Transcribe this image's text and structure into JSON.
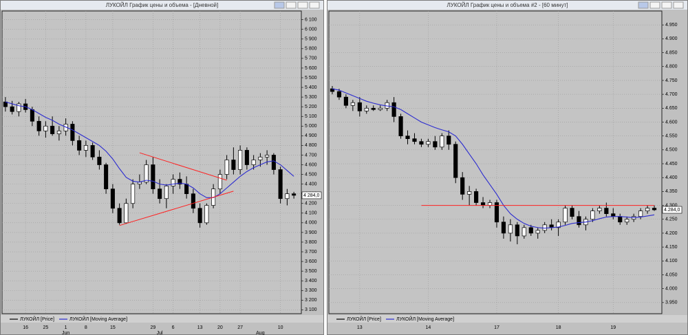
{
  "chart_data": [
    {
      "type": "candlestick",
      "title": "ЛУКОЙЛ График цены и объема - [Дневной]",
      "grid": true,
      "up_color": "#ffffff",
      "down_color": "#000000",
      "categories": [
        null,
        null,
        null,
        "16",
        null,
        null,
        "25",
        null,
        null,
        "1",
        null,
        null,
        "8",
        null,
        null,
        null,
        "15",
        null,
        null,
        null,
        null,
        null,
        "29",
        null,
        null,
        "6",
        null,
        null,
        null,
        "13",
        null,
        null,
        "20",
        null,
        null,
        "27",
        null,
        null,
        null,
        null,
        null,
        "10",
        null,
        null
      ],
      "months": [
        null,
        null,
        null,
        null,
        null,
        null,
        null,
        null,
        null,
        "Jun",
        null,
        null,
        null,
        null,
        null,
        null,
        null,
        null,
        null,
        null,
        null,
        null,
        null,
        "Jul",
        null,
        null,
        null,
        null,
        null,
        null,
        null,
        null,
        null,
        null,
        null,
        null,
        null,
        null,
        "Aug",
        null,
        null,
        null,
        null,
        null
      ],
      "series": [
        {
          "name": "ЛУКОЙЛ [Price]",
          "color": "#000000",
          "open": [
            5250,
            5200,
            5150,
            5230,
            5170,
            5050,
            4950,
            5000,
            4920,
            4950,
            5020,
            4850,
            4750,
            4800,
            4680,
            4600,
            4350,
            4150,
            4000,
            4200,
            4400,
            4420,
            4600,
            4350,
            4250,
            4380,
            4450,
            4400,
            4300,
            4150,
            4000,
            4180,
            4350,
            4500,
            4650,
            4550,
            4750,
            4600,
            4650,
            4680,
            4700,
            4550,
            4250,
            4300
          ],
          "high": [
            5300,
            5260,
            5250,
            5280,
            5200,
            5100,
            5050,
            5100,
            5000,
            5080,
            5050,
            4900,
            4850,
            4830,
            4750,
            4620,
            4400,
            4200,
            4250,
            4450,
            4500,
            4650,
            4680,
            4450,
            4400,
            4500,
            4520,
            4480,
            4350,
            4200,
            4200,
            4400,
            4550,
            4700,
            4780,
            4800,
            4780,
            4700,
            4720,
            4750,
            4720,
            4580,
            4350,
            4320
          ],
          "low": [
            5150,
            5120,
            5100,
            5140,
            5000,
            4900,
            4880,
            4900,
            4850,
            4900,
            4800,
            4700,
            4680,
            4650,
            4550,
            4300,
            4100,
            3980,
            3990,
            4150,
            4350,
            4400,
            4300,
            4200,
            4150,
            4300,
            4350,
            4250,
            4100,
            3950,
            3980,
            4150,
            4300,
            4450,
            4500,
            4500,
            4550,
            4550,
            4580,
            4600,
            4500,
            4200,
            4180,
            4250
          ],
          "close": [
            5200,
            5150,
            5230,
            5170,
            5050,
            4950,
            5000,
            4920,
            4950,
            5020,
            4850,
            4750,
            4800,
            4680,
            4600,
            4350,
            4150,
            4000,
            4200,
            4400,
            4420,
            4600,
            4350,
            4250,
            4380,
            4450,
            4400,
            4300,
            4150,
            4000,
            4180,
            4350,
            4500,
            4650,
            4550,
            4750,
            4600,
            4650,
            4680,
            4700,
            4550,
            4250,
            4300,
            4284
          ]
        },
        {
          "name": "ЛУКОЙЛ [Moving Average]",
          "color": "#2b2bd0",
          "values": [
            5250,
            5230,
            5210,
            5200,
            5170,
            5130,
            5090,
            5060,
            5020,
            4990,
            4960,
            4920,
            4880,
            4840,
            4800,
            4740,
            4660,
            4560,
            4470,
            4430,
            4420,
            4440,
            4430,
            4400,
            4390,
            4400,
            4410,
            4400,
            4360,
            4300,
            4260,
            4260,
            4300,
            4360,
            4420,
            4480,
            4530,
            4570,
            4600,
            4630,
            4640,
            4600,
            4540,
            4480
          ]
        }
      ],
      "lines": [
        {
          "color": "#ff2020",
          "x": [
            20,
            33
          ],
          "y": [
            4724,
            4440
          ]
        },
        {
          "color": "#ff2020",
          "x": [
            17,
            34
          ],
          "y": [
            3972,
            4327
          ]
        }
      ],
      "last_label": {
        "value": 4284,
        "label": "4 284,0"
      },
      "ylim": [
        3060,
        6190
      ],
      "yticks": [
        {
          "value": 3100,
          "label": "3 100"
        },
        {
          "value": 3200,
          "label": "3 200"
        },
        {
          "value": 3300,
          "label": "3 300"
        },
        {
          "value": 3400,
          "label": "3 400"
        },
        {
          "value": 3500,
          "label": "3 500"
        },
        {
          "value": 3600,
          "label": "3 600"
        },
        {
          "value": 3700,
          "label": "3 700"
        },
        {
          "value": 3800,
          "label": "3 800"
        },
        {
          "value": 3900,
          "label": "3 900"
        },
        {
          "value": 4000,
          "label": "4 000"
        },
        {
          "value": 4100,
          "label": "4 100"
        },
        {
          "value": 4200,
          "label": "4 200"
        },
        {
          "value": 4300,
          "label": "4 300"
        },
        {
          "value": 4400,
          "label": "4 400"
        },
        {
          "value": 4500,
          "label": "4 500"
        },
        {
          "value": 4600,
          "label": "4 600"
        },
        {
          "value": 4700,
          "label": "4 700"
        },
        {
          "value": 4800,
          "label": "4 800"
        },
        {
          "value": 4900,
          "label": "4 900"
        },
        {
          "value": 5000,
          "label": "5 000"
        },
        {
          "value": 5100,
          "label": "5 100"
        },
        {
          "value": 5200,
          "label": "5 200"
        },
        {
          "value": 5300,
          "label": "5 300"
        },
        {
          "value": 5400,
          "label": "5 400"
        },
        {
          "value": 5500,
          "label": "5 500"
        },
        {
          "value": 5600,
          "label": "5 600"
        },
        {
          "value": 5700,
          "label": "5 700"
        },
        {
          "value": 5800,
          "label": "5 800"
        },
        {
          "value": 5900,
          "label": "5 900"
        },
        {
          "value": 6000,
          "label": "6 000"
        },
        {
          "value": 6100,
          "label": "6 100"
        }
      ]
    },
    {
      "type": "candlestick",
      "title": "ЛУКОЙЛ График цены и объема #2 - [60 минут]",
      "grid": true,
      "up_color": "#ffffff",
      "down_color": "#000000",
      "categories": [
        null,
        null,
        null,
        null,
        "13",
        null,
        null,
        null,
        null,
        null,
        null,
        null,
        null,
        null,
        "14",
        null,
        null,
        null,
        null,
        null,
        null,
        null,
        null,
        null,
        "17",
        null,
        null,
        null,
        null,
        null,
        null,
        null,
        null,
        "18",
        null,
        null,
        null,
        null,
        null,
        null,
        null,
        "19",
        null,
        null,
        null,
        null,
        null,
        null
      ],
      "series": [
        {
          "name": "ЛУКОЙЛ [Price]",
          "color": "#000000",
          "open": [
            4720,
            4710,
            4690,
            4660,
            4670,
            4640,
            4650,
            4645,
            4650,
            4670,
            4620,
            4550,
            4540,
            4530,
            4520,
            4530,
            4510,
            4550,
            4520,
            4400,
            4340,
            4350,
            4310,
            4300,
            4310,
            4240,
            4200,
            4230,
            4190,
            4220,
            4200,
            4210,
            4230,
            4220,
            4240,
            4290,
            4260,
            4230,
            4250,
            4280,
            4290,
            4270,
            4260,
            4240,
            4250,
            4260,
            4280,
            4290
          ],
          "high": [
            4730,
            4720,
            4700,
            4680,
            4690,
            4660,
            4660,
            4660,
            4680,
            4690,
            4630,
            4570,
            4560,
            4540,
            4540,
            4550,
            4560,
            4570,
            4530,
            4420,
            4370,
            4360,
            4330,
            4320,
            4320,
            4260,
            4250,
            4240,
            4230,
            4230,
            4220,
            4240,
            4250,
            4250,
            4300,
            4300,
            4280,
            4260,
            4290,
            4300,
            4310,
            4290,
            4270,
            4260,
            4270,
            4290,
            4300,
            4300
          ],
          "low": [
            4700,
            4680,
            4650,
            4640,
            4620,
            4630,
            4640,
            4640,
            4640,
            4600,
            4540,
            4520,
            4520,
            4510,
            4510,
            4500,
            4500,
            4500,
            4380,
            4320,
            4300,
            4300,
            4290,
            4290,
            4220,
            4180,
            4170,
            4160,
            4180,
            4190,
            4180,
            4200,
            4210,
            4190,
            4230,
            4250,
            4220,
            4210,
            4240,
            4270,
            4260,
            4250,
            4230,
            4230,
            4240,
            4250,
            4270,
            4280
          ],
          "close": [
            4710,
            4690,
            4660,
            4670,
            4640,
            4650,
            4645,
            4650,
            4670,
            4620,
            4550,
            4540,
            4530,
            4520,
            4530,
            4510,
            4550,
            4520,
            4400,
            4340,
            4350,
            4310,
            4300,
            4310,
            4240,
            4200,
            4230,
            4190,
            4220,
            4200,
            4210,
            4230,
            4220,
            4240,
            4290,
            4260,
            4230,
            4250,
            4280,
            4290,
            4270,
            4260,
            4240,
            4250,
            4260,
            4280,
            4290,
            4284
          ]
        },
        {
          "name": "ЛУКОЙЛ [Moving Average]",
          "color": "#2b2bd0",
          "values": [
            4720,
            4715,
            4705,
            4695,
            4685,
            4675,
            4668,
            4662,
            4658,
            4655,
            4645,
            4630,
            4615,
            4600,
            4590,
            4580,
            4572,
            4565,
            4550,
            4520,
            4485,
            4450,
            4410,
            4375,
            4340,
            4300,
            4270,
            4250,
            4235,
            4225,
            4220,
            4218,
            4220,
            4222,
            4228,
            4235,
            4238,
            4240,
            4245,
            4252,
            4258,
            4260,
            4260,
            4258,
            4256,
            4258,
            4262,
            4266
          ]
        }
      ],
      "lines": [
        {
          "color": "#ff2020",
          "x": [
            13,
            47
          ],
          "y": [
            4300,
            4300
          ]
        }
      ],
      "last_label": {
        "value": 4284,
        "label": "4.284,0"
      },
      "ylim": [
        3910,
        5000
      ],
      "yticks": [
        {
          "value": 3950,
          "label": "3.950"
        },
        {
          "value": 4000,
          "label": "4.000"
        },
        {
          "value": 4050,
          "label": "4.050"
        },
        {
          "value": 4100,
          "label": "4.100"
        },
        {
          "value": 4150,
          "label": "4.150"
        },
        {
          "value": 4200,
          "label": "4.200"
        },
        {
          "value": 4250,
          "label": "4.250"
        },
        {
          "value": 4300,
          "label": "4.300"
        },
        {
          "value": 4350,
          "label": "4.350"
        },
        {
          "value": 4400,
          "label": "4.400"
        },
        {
          "value": 4450,
          "label": "4.450"
        },
        {
          "value": 4500,
          "label": "4.500"
        },
        {
          "value": 4550,
          "label": "4.550"
        },
        {
          "value": 4600,
          "label": "4.600"
        },
        {
          "value": 4650,
          "label": "4.650"
        },
        {
          "value": 4700,
          "label": "4.700"
        },
        {
          "value": 4750,
          "label": "4.750"
        },
        {
          "value": 4800,
          "label": "4.800"
        },
        {
          "value": 4850,
          "label": "4.850"
        },
        {
          "value": 4900,
          "label": "4.900"
        },
        {
          "value": 4950,
          "label": "4.950"
        }
      ]
    }
  ]
}
